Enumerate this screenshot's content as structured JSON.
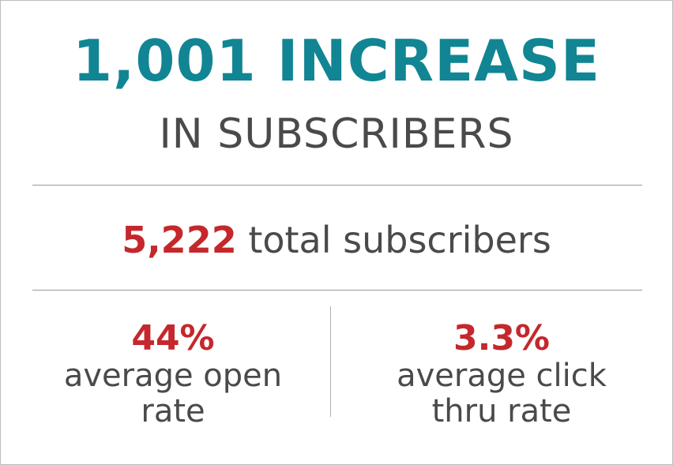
{
  "headline": {
    "number": "1,001",
    "word": "INCREASE",
    "sub": "IN SUBSCRIBERS"
  },
  "total": {
    "number": "5,222",
    "label": "total subscribers"
  },
  "stats": {
    "open": {
      "value": "44%",
      "label_line1": "average open",
      "label_line2": "rate"
    },
    "click": {
      "value": "3.3%",
      "label_line1": "average click",
      "label_line2": "thru rate"
    }
  },
  "colors": {
    "teal": "#118593",
    "red": "#c4282c",
    "gray_text": "#4a4a4a",
    "divider": "#9a9a9a"
  }
}
